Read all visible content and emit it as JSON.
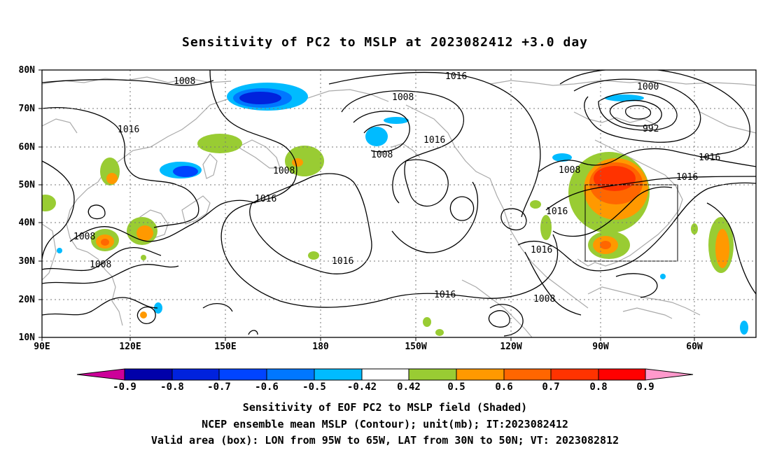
{
  "title": "Sensitivity of PC2 to MSLP at 2023082412 +3.0 day",
  "lat_labels": [
    "80N",
    "70N",
    "60N",
    "50N",
    "40N",
    "30N",
    "20N",
    "10N"
  ],
  "lon_labels": [
    "90E",
    "120E",
    "150E",
    "180",
    "150W",
    "120W",
    "90W",
    "60W"
  ],
  "contour_labels": [
    {
      "text": "1008"
    },
    {
      "text": "1016"
    },
    {
      "text": "1008"
    },
    {
      "text": "1000"
    },
    {
      "text": "992"
    },
    {
      "text": "1016"
    },
    {
      "text": "1008"
    },
    {
      "text": "1016"
    },
    {
      "text": "1008"
    },
    {
      "text": "1016"
    },
    {
      "text": "1016"
    },
    {
      "text": "1008"
    },
    {
      "text": "1016"
    },
    {
      "text": "1008"
    },
    {
      "text": "1008"
    },
    {
      "text": "1016"
    },
    {
      "text": "1016"
    },
    {
      "text": "1016"
    },
    {
      "text": "1008"
    }
  ],
  "colorbar": {
    "labels": [
      "-0.9",
      "-0.8",
      "-0.7",
      "-0.6",
      "-0.5",
      "-0.42",
      "0.42",
      "0.5",
      "0.6",
      "0.7",
      "0.8",
      "0.9"
    ],
    "colors": [
      "#cc0099",
      "#0000aa",
      "#0022dd",
      "#0044ff",
      "#0077ff",
      "#00bbff",
      "#ffffff",
      "#99cc33",
      "#ff9900",
      "#ff6600",
      "#ff3300",
      "#ff0000",
      "#ff99cc"
    ]
  },
  "box": {
    "lon_west": "95W",
    "lon_east": "65W",
    "lat_south": "30N",
    "lat_north": "50N"
  },
  "caption1": "Sensitivity of EOF PC2 to MSLP field (Shaded)",
  "caption2": "NCEP ensemble mean MSLP (Contour); unit(mb); IT:2023082412",
  "caption3": "Valid area (box): LON from 95W to 65W, LAT from 30N to 50N; VT: 2023082812"
}
